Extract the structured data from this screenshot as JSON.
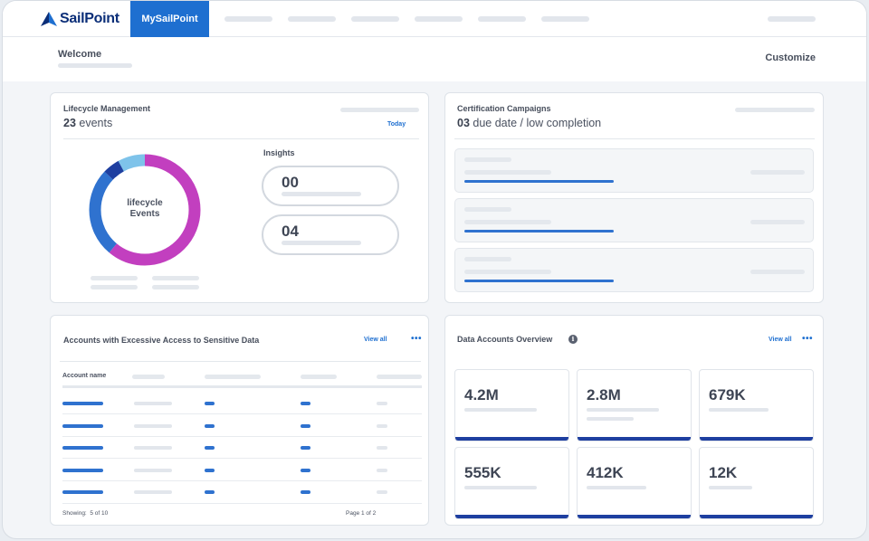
{
  "nav": {
    "brand": "SailPoint",
    "active_tab": "MySailPoint"
  },
  "welcome": {
    "title": "Welcome",
    "customize": "Customize"
  },
  "lifecycle": {
    "title": "Lifecycle Management",
    "count": "23",
    "count_suffix": " events",
    "link": "Today",
    "donut_line1": "lifecycle",
    "donut_line2": "Events",
    "donut_segments": [
      {
        "label": "magenta",
        "fraction": 0.61,
        "color": "#c23fbf"
      },
      {
        "label": "blue",
        "fraction": 0.26,
        "color": "#2f72cf"
      },
      {
        "label": "navy",
        "fraction": 0.05,
        "color": "#1e3fa0"
      },
      {
        "label": "light-blue",
        "fraction": 0.08,
        "color": "#7ec3ea"
      }
    ],
    "insights_title": "Insights",
    "insights": [
      "00",
      "04"
    ]
  },
  "certification": {
    "title": "Certification Campaigns",
    "count": "03",
    "count_suffix": " due date / low completion"
  },
  "accounts": {
    "title": "Accounts with Excessive Access to Sensitive Data",
    "view_all": "View all",
    "more": "•••",
    "column": "Account name",
    "showing_label": "Showing:",
    "showing_value": "5 of 10",
    "page": "Page 1 of 2"
  },
  "data_overview": {
    "title": "Data Accounts Overview",
    "info_icon": "i",
    "view_all": "View all",
    "more": "•••",
    "tiles": [
      "4.2M",
      "2.8M",
      "679K",
      "555K",
      "412K",
      "12K"
    ]
  },
  "colors": {
    "accent": "#1e6fd0",
    "bar": "#2f72cf",
    "navy": "#1e3fa0",
    "magenta": "#c23fbf"
  }
}
